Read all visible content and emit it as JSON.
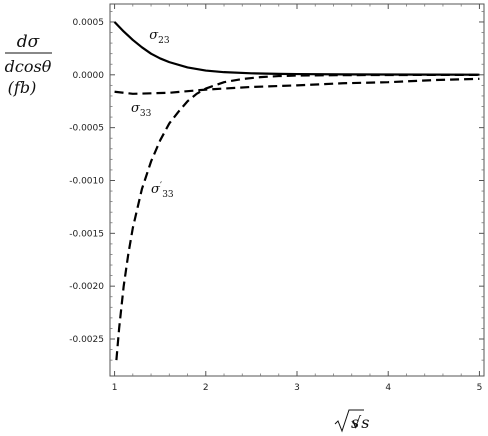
{
  "chart_data": {
    "type": "line",
    "title": "",
    "xlabel": "√s",
    "ylabel": {
      "numerator": "dσ",
      "denominator": "dcosθ",
      "unit": "(fb)"
    },
    "xlim": [
      0.95,
      5.05
    ],
    "ylim": [
      -0.00285,
      0.00067
    ],
    "x_ticks": [
      1,
      2,
      3,
      4,
      5
    ],
    "x_tick_labels": [
      "1",
      "2",
      "3",
      "4",
      "5"
    ],
    "y_ticks": [
      0.0005,
      0.0,
      -0.0005,
      -0.001,
      -0.0015,
      -0.002,
      -0.0025
    ],
    "y_tick_labels": [
      "0.0005",
      "0.0000",
      "-0.0005",
      "-0.0010",
      "-0.0015",
      "-0.0020",
      "-0.0025"
    ],
    "grid": false,
    "legend": "none",
    "series": [
      {
        "name": "σ23",
        "label": {
          "base": "σ",
          "sub": "23",
          "prime": ""
        },
        "style": "solid",
        "color": "#000000",
        "x": [
          1.0,
          1.1,
          1.2,
          1.3,
          1.4,
          1.5,
          1.6,
          1.8,
          2.0,
          2.2,
          2.5,
          2.8,
          3.0,
          3.5,
          4.0,
          4.5,
          5.0
        ],
        "y": [
          0.0005,
          0.00041,
          0.00033,
          0.00026,
          0.0002,
          0.000155,
          0.00012,
          7e-05,
          4e-05,
          2.5e-05,
          1.4e-05,
          9e-06,
          7e-06,
          4e-06,
          3e-06,
          2e-06,
          1e-06
        ]
      },
      {
        "name": "σ33",
        "label": {
          "base": "σ",
          "sub": "33",
          "prime": ""
        },
        "style": "dashed",
        "color": "#000000",
        "x": [
          1.0,
          1.2,
          1.4,
          1.6,
          1.8,
          2.0,
          2.2,
          2.5,
          3.0,
          3.5,
          4.0,
          4.5,
          5.0
        ],
        "y": [
          -0.00016,
          -0.00018,
          -0.000175,
          -0.00017,
          -0.000155,
          -0.00014,
          -0.00013,
          -0.000115,
          -0.0001,
          -8e-05,
          -7e-05,
          -5e-05,
          -3.8e-05
        ]
      },
      {
        "name": "σ'33",
        "label": {
          "base": "σ",
          "sub": "33",
          "prime": "′"
        },
        "style": "dashed",
        "color": "#000000",
        "x": [
          1.02,
          1.05,
          1.1,
          1.15,
          1.2,
          1.3,
          1.4,
          1.5,
          1.6,
          1.7,
          1.8,
          1.9,
          2.0,
          2.2,
          2.4,
          2.6,
          2.8,
          3.0,
          3.5,
          4.0,
          4.5,
          5.0
        ],
        "y": [
          -0.0027,
          -0.0024,
          -0.002,
          -0.0017,
          -0.00145,
          -0.00108,
          -0.00082,
          -0.00062,
          -0.00046,
          -0.00035,
          -0.00025,
          -0.00018,
          -0.00013,
          -7e-05,
          -4e-05,
          -2.2e-05,
          -1.2e-05,
          -7e-06,
          -3e-06,
          -2e-06,
          -1e-06,
          -5e-07
        ]
      }
    ]
  }
}
